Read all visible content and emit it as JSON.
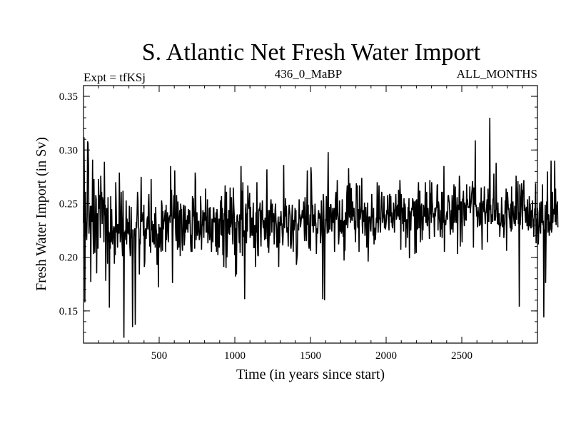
{
  "chart_data": {
    "type": "line",
    "title": "S. Atlantic Net Fresh Water Import",
    "subtitle_left": "Expt = tfKSj",
    "subtitle_center": "436_0_MaBP",
    "subtitle_right": "ALL_MONTHS",
    "xlabel": "Time (in years since start)",
    "ylabel": "Fresh Water Import (in Sv)",
    "xlim": [
      0,
      3000
    ],
    "ylim": [
      0.12,
      0.36
    ],
    "xticks": [
      500,
      1000,
      1500,
      2000,
      2500
    ],
    "xtick_labels": [
      "500",
      "1000",
      "1500",
      "2000",
      "2500"
    ],
    "yticks": [
      0.15,
      0.2,
      0.25,
      0.3,
      0.35
    ],
    "ytick_labels": [
      "0.15",
      "0.20",
      "0.25",
      "0.30",
      "0.35"
    ],
    "series": [
      {
        "name": "Net fresh water import",
        "color": "#000000",
        "x_start": 0,
        "x_step": 3,
        "values": [
          0.232,
          0.312,
          0.265,
          0.158,
          0.261,
          0.233,
          0.225,
          0.216,
          0.239,
          0.308,
          0.306,
          0.286,
          0.222,
          0.233,
          0.236,
          0.248,
          0.177,
          0.248,
          0.234,
          0.233,
          0.291,
          0.227,
          0.203,
          0.273,
          0.234,
          0.204,
          0.225,
          0.258,
          0.254,
          0.185,
          0.241,
          0.233,
          0.208,
          0.273,
          0.256,
          0.245,
          0.258,
          0.218,
          0.276,
          0.254,
          0.261,
          0.231,
          0.256,
          0.253,
          0.251,
          0.214,
          0.289,
          0.239,
          0.249,
          0.178,
          0.225,
          0.246,
          0.244,
          0.194,
          0.256,
          0.214,
          0.224,
          0.153,
          0.223,
          0.208,
          0.257,
          0.214,
          0.245,
          0.224,
          0.212,
          0.221,
          0.227,
          0.229,
          0.194,
          0.228,
          0.202,
          0.27,
          0.249,
          0.223,
          0.231,
          0.209,
          0.229,
          0.231,
          0.222,
          0.279,
          0.244,
          0.214,
          0.219,
          0.261,
          0.236,
          0.212,
          0.201,
          0.262,
          0.222,
          0.125,
          0.223,
          0.223,
          0.225,
          0.216,
          0.253,
          0.212,
          0.236,
          0.222,
          0.226,
          0.233,
          0.221,
          0.248,
          0.211,
          0.201,
          0.204,
          0.247,
          0.218,
          0.226,
          0.135,
          0.192,
          0.215,
          0.226,
          0.22,
          0.227,
          0.137,
          0.198,
          0.233,
          0.227,
          0.241,
          0.261,
          0.253,
          0.23,
          0.226,
          0.184,
          0.217,
          0.212,
          0.242,
          0.275,
          0.233,
          0.235,
          0.237,
          0.242,
          0.22,
          0.249,
          0.191,
          0.196,
          0.225,
          0.227,
          0.217,
          0.226,
          0.235,
          0.238,
          0.226,
          0.249,
          0.259,
          0.228,
          0.21,
          0.215,
          0.204,
          0.273,
          0.225,
          0.234,
          0.214,
          0.216,
          0.231,
          0.212,
          0.214,
          0.241,
          0.209,
          0.247,
          0.227,
          0.222,
          0.193,
          0.198,
          0.222,
          0.172,
          0.231,
          0.209,
          0.228,
          0.227,
          0.21,
          0.205,
          0.253,
          0.248,
          0.206,
          0.243,
          0.226,
          0.234,
          0.234,
          0.239,
          0.244,
          0.205,
          0.249,
          0.216,
          0.224,
          0.242,
          0.238,
          0.214,
          0.236,
          0.237,
          0.239,
          0.232,
          0.285,
          0.238,
          0.263,
          0.236,
          0.176,
          0.223,
          0.243,
          0.258,
          0.236,
          0.281,
          0.242,
          0.223,
          0.215,
          0.258,
          0.24,
          0.207,
          0.252,
          0.238,
          0.209,
          0.23,
          0.244,
          0.201,
          0.25,
          0.243,
          0.245,
          0.215,
          0.206,
          0.221,
          0.246,
          0.249,
          0.211,
          0.218,
          0.248,
          0.223,
          0.231,
          0.235,
          0.226,
          0.239,
          0.223,
          0.245,
          0.231,
          0.238,
          0.244,
          0.231,
          0.212,
          0.205,
          0.221,
          0.205,
          0.257,
          0.238,
          0.255,
          0.241,
          0.233,
          0.208,
          0.279,
          0.27,
          0.216,
          0.231,
          0.242,
          0.22,
          0.224,
          0.233,
          0.234,
          0.216,
          0.22,
          0.222,
          0.257,
          0.243,
          0.207,
          0.23,
          0.23,
          0.244,
          0.238,
          0.218,
          0.242,
          0.236,
          0.234,
          0.264,
          0.223,
          0.238,
          0.223,
          0.254,
          0.213,
          0.223,
          0.222,
          0.246,
          0.216,
          0.247,
          0.222,
          0.218,
          0.205,
          0.236,
          0.228,
          0.214,
          0.246,
          0.246,
          0.233,
          0.233,
          0.237,
          0.21,
          0.242,
          0.205,
          0.245,
          0.239,
          0.202,
          0.236,
          0.213,
          0.209,
          0.236,
          0.234,
          0.253,
          0.221,
          0.257,
          0.22,
          0.246,
          0.202,
          0.235,
          0.191,
          0.241,
          0.239,
          0.267,
          0.219,
          0.19,
          0.261,
          0.2,
          0.218,
          0.236,
          0.222,
          0.244,
          0.243,
          0.221,
          0.265,
          0.228,
          0.233,
          0.256,
          0.238,
          0.222,
          0.212,
          0.265,
          0.249,
          0.24,
          0.202,
          0.233,
          0.182,
          0.227,
          0.184,
          0.238,
          0.24,
          0.234,
          0.233,
          0.226,
          0.213,
          0.24,
          0.204,
          0.242,
          0.285,
          0.235,
          0.262,
          0.201,
          0.27,
          0.222,
          0.219,
          0.225,
          0.161,
          0.208,
          0.245,
          0.25,
          0.213,
          0.241,
          0.224,
          0.267,
          0.251,
          0.248,
          0.245,
          0.26,
          0.218,
          0.247,
          0.22,
          0.232,
          0.237,
          0.22,
          0.233,
          0.251,
          0.209,
          0.209,
          0.23,
          0.229,
          0.191,
          0.242,
          0.223,
          0.27,
          0.216,
          0.202,
          0.201,
          0.244,
          0.245,
          0.243,
          0.251,
          0.224,
          0.21,
          0.244,
          0.235,
          0.253,
          0.233,
          0.227,
          0.235,
          0.229,
          0.216,
          0.237,
          0.232,
          0.217,
          0.245,
          0.282,
          0.224,
          0.209,
          0.244,
          0.204,
          0.22,
          0.244,
          0.22,
          0.247,
          0.254,
          0.242,
          0.223,
          0.25,
          0.234,
          0.233,
          0.241,
          0.212,
          0.227,
          0.244,
          0.25,
          0.234,
          0.229,
          0.209,
          0.21,
          0.231,
          0.238,
          0.191,
          0.233,
          0.213,
          0.238,
          0.229,
          0.243,
          0.231,
          0.231,
          0.22,
          0.211,
          0.223,
          0.286,
          0.233,
          0.227,
          0.241,
          0.255,
          0.238,
          0.248,
          0.223,
          0.228,
          0.226,
          0.21,
          0.241,
          0.249,
          0.244,
          0.239,
          0.212,
          0.208,
          0.214,
          0.238,
          0.249,
          0.226,
          0.205,
          0.235,
          0.225,
          0.23,
          0.246,
          0.233,
          0.244,
          0.193,
          0.198,
          0.203,
          0.23,
          0.232,
          0.225,
          0.254,
          0.236,
          0.24,
          0.228,
          0.232,
          0.237,
          0.239,
          0.244,
          0.236,
          0.24,
          0.252,
          0.23,
          0.215,
          0.256,
          0.24,
          0.221,
          0.215,
          0.248,
          0.281,
          0.23,
          0.249,
          0.212,
          0.208,
          0.227,
          0.24,
          0.206,
          0.284,
          0.276,
          0.252,
          0.229,
          0.249,
          0.223,
          0.232,
          0.24,
          0.229,
          0.25,
          0.234,
          0.231,
          0.203,
          0.227,
          0.226,
          0.222,
          0.24,
          0.244,
          0.236,
          0.241,
          0.238,
          0.213,
          0.222,
          0.253,
          0.236,
          0.219,
          0.161,
          0.259,
          0.253,
          0.222,
          0.16,
          0.217,
          0.235,
          0.235,
          0.257,
          0.234,
          0.222,
          0.257,
          0.298,
          0.223,
          0.247,
          0.227,
          0.226,
          0.249,
          0.249,
          0.239,
          0.224,
          0.237,
          0.246,
          0.233,
          0.232,
          0.246,
          0.205,
          0.233,
          0.254,
          0.261,
          0.235,
          0.24,
          0.272,
          0.243,
          0.235,
          0.212,
          0.221,
          0.253,
          0.225,
          0.224,
          0.235,
          0.222,
          0.225,
          0.254,
          0.227,
          0.219,
          0.234,
          0.197,
          0.235,
          0.206,
          0.242,
          0.234,
          0.23,
          0.259,
          0.267,
          0.227,
          0.237,
          0.283,
          0.244,
          0.237,
          0.269,
          0.232,
          0.264,
          0.264,
          0.235,
          0.234,
          0.252,
          0.238,
          0.241,
          0.246,
          0.226,
          0.234,
          0.214,
          0.23,
          0.269,
          0.259,
          0.267,
          0.229,
          0.227,
          0.245,
          0.205,
          0.267,
          0.235,
          0.237,
          0.242,
          0.248,
          0.274,
          0.231,
          0.222,
          0.244,
          0.24,
          0.233,
          0.251,
          0.22,
          0.233,
          0.247,
          0.235,
          0.209,
          0.231,
          0.251,
          0.196,
          0.216,
          0.238,
          0.235,
          0.238,
          0.227,
          0.224,
          0.238,
          0.259,
          0.24,
          0.236,
          0.22,
          0.246,
          0.212,
          0.227,
          0.227,
          0.216,
          0.225,
          0.237,
          0.232,
          0.27,
          0.256,
          0.223,
          0.238,
          0.267,
          0.236,
          0.236,
          0.223,
          0.235,
          0.254,
          0.261,
          0.248,
          0.232,
          0.238,
          0.237,
          0.257,
          0.227,
          0.24,
          0.226,
          0.229,
          0.234,
          0.244,
          0.24,
          0.258,
          0.241,
          0.232,
          0.225,
          0.258,
          0.259,
          0.238,
          0.257,
          0.232,
          0.242,
          0.229,
          0.227,
          0.237,
          0.251,
          0.244,
          0.223,
          0.244,
          0.244,
          0.259,
          0.235,
          0.237,
          0.247,
          0.249,
          0.238,
          0.263,
          0.24,
          0.235,
          0.272,
          0.258,
          0.207,
          0.259,
          0.246,
          0.246,
          0.231,
          0.246,
          0.224,
          0.255,
          0.233,
          0.25,
          0.246,
          0.209,
          0.232,
          0.235,
          0.235,
          0.218,
          0.247,
          0.24,
          0.255,
          0.199,
          0.243,
          0.238,
          0.225,
          0.241,
          0.246,
          0.244,
          0.255,
          0.253,
          0.238,
          0.25,
          0.252,
          0.203,
          0.235,
          0.253,
          0.204,
          0.254,
          0.228,
          0.226,
          0.258,
          0.27,
          0.227,
          0.26,
          0.262,
          0.214,
          0.236,
          0.248,
          0.25,
          0.216,
          0.238,
          0.225,
          0.249,
          0.244,
          0.238,
          0.239,
          0.27,
          0.232,
          0.234,
          0.261,
          0.23,
          0.229,
          0.246,
          0.235,
          0.237,
          0.217,
          0.272,
          0.24,
          0.26,
          0.232,
          0.27,
          0.253,
          0.247,
          0.237,
          0.241,
          0.24,
          0.219,
          0.246,
          0.238,
          0.243,
          0.247,
          0.246,
          0.267,
          0.268,
          0.225,
          0.252,
          0.248,
          0.236,
          0.231,
          0.219,
          0.244,
          0.226,
          0.261,
          0.218,
          0.233,
          0.261,
          0.232,
          0.285,
          0.205,
          0.232,
          0.235,
          0.23,
          0.238,
          0.241,
          0.243,
          0.235,
          0.257,
          0.258,
          0.253,
          0.251,
          0.237,
          0.221,
          0.23,
          0.244,
          0.226,
          0.258,
          0.249,
          0.223,
          0.245,
          0.268,
          0.232,
          0.256,
          0.266,
          0.235,
          0.232,
          0.245,
          0.256,
          0.203,
          0.247,
          0.249,
          0.244,
          0.276,
          0.264,
          0.21,
          0.25,
          0.252,
          0.236,
          0.214,
          0.254,
          0.255,
          0.262,
          0.24,
          0.229,
          0.251,
          0.235,
          0.249,
          0.234,
          0.268,
          0.249,
          0.254,
          0.246,
          0.247,
          0.247,
          0.246,
          0.266,
          0.241,
          0.247,
          0.251,
          0.259,
          0.263,
          0.271,
          0.26,
          0.209,
          0.265,
          0.257,
          0.249,
          0.309,
          0.247,
          0.249,
          0.238,
          0.243,
          0.228,
          0.247,
          0.241,
          0.24,
          0.229,
          0.251,
          0.23,
          0.234,
          0.265,
          0.236,
          0.207,
          0.249,
          0.252,
          0.252,
          0.242,
          0.266,
          0.241,
          0.231,
          0.242,
          0.242,
          0.247,
          0.254,
          0.214,
          0.264,
          0.242,
          0.233,
          0.262,
          0.33,
          0.244,
          0.249,
          0.231,
          0.235,
          0.24,
          0.233,
          0.254,
          0.255,
          0.278,
          0.234,
          0.244,
          0.234,
          0.238,
          0.288,
          0.246,
          0.244,
          0.231,
          0.251,
          0.23,
          0.235,
          0.241,
          0.219,
          0.232,
          0.229,
          0.233,
          0.256,
          0.243,
          0.228,
          0.231,
          0.24,
          0.218,
          0.229,
          0.232,
          0.253,
          0.241,
          0.264,
          0.206,
          0.247,
          0.261,
          0.253,
          0.244,
          0.246,
          0.237,
          0.235,
          0.227,
          0.25,
          0.224,
          0.266,
          0.226,
          0.249,
          0.252,
          0.24,
          0.235,
          0.231,
          0.248,
          0.229,
          0.239,
          0.276,
          0.235,
          0.256,
          0.259,
          0.271,
          0.231,
          0.242,
          0.154,
          0.268,
          0.23,
          0.24,
          0.257,
          0.269,
          0.249,
          0.226,
          0.263,
          0.261,
          0.272,
          0.243,
          0.249,
          0.24,
          0.232,
          0.245,
          0.247,
          0.229,
          0.254,
          0.235,
          0.225,
          0.231,
          0.257,
          0.229,
          0.25,
          0.228,
          0.227,
          0.244,
          0.238,
          0.253,
          0.228,
          0.236,
          0.219,
          0.237,
          0.245,
          0.246,
          0.269,
          0.213,
          0.236,
          0.222,
          0.246,
          0.242,
          0.212,
          0.229,
          0.228,
          0.251,
          0.225,
          0.222,
          0.252,
          0.234,
          0.232,
          0.268,
          0.23,
          0.234,
          0.144,
          0.226,
          0.222,
          0.249,
          0.176,
          0.219,
          0.252,
          0.235,
          0.28,
          0.223,
          0.24,
          0.239,
          0.22,
          0.233,
          0.225,
          0.237,
          0.29,
          0.223,
          0.227,
          0.261,
          0.232,
          0.245,
          0.244,
          0.24,
          0.29,
          0.233,
          0.264,
          0.23,
          0.249,
          0.248,
          0.252,
          0.228
        ]
      }
    ]
  }
}
